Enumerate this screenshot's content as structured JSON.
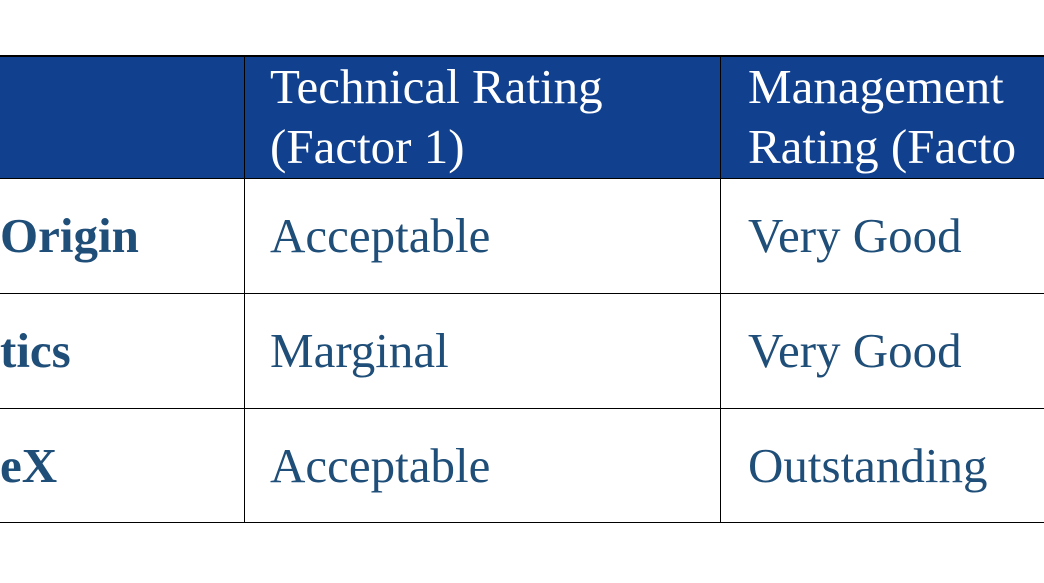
{
  "table": {
    "header": [
      [
        "Technical Rating",
        "(Factor 1)"
      ],
      [
        "Management",
        "Rating (Facto"
      ]
    ],
    "rows": [
      [
        "Origin",
        "Acceptable",
        "Very Good"
      ],
      [
        "tics",
        "Marginal",
        "Very Good"
      ],
      [
        "eX",
        "Acceptable",
        "Outstanding"
      ]
    ]
  }
}
